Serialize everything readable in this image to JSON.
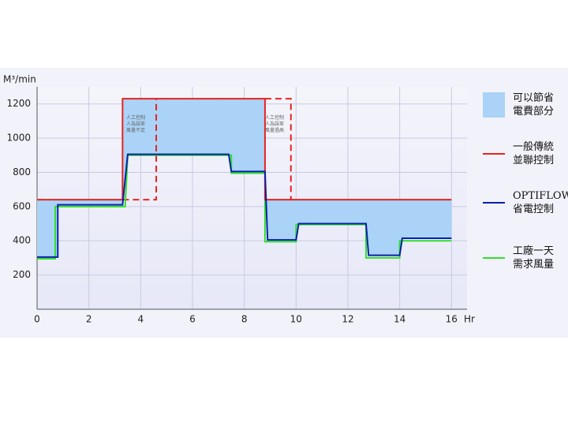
{
  "chart_data": {
    "type": "line",
    "y_label": "M³/min",
    "x_label": "Hr",
    "xlim": [
      0,
      16.6
    ],
    "ylim": [
      0,
      1300
    ],
    "xticks": [
      0,
      2,
      4,
      6,
      8,
      10,
      12,
      14,
      16
    ],
    "yticks": [
      200,
      400,
      600,
      800,
      1000,
      1200
    ],
    "grid": true,
    "shade": {
      "name": "可以節省\n電費部分",
      "color": "#aad3f7"
    },
    "series": [
      {
        "name": "一般傳統\n並聯控制",
        "color": "#e8231e",
        "x": [
          0,
          3.3,
          3.3,
          8.8,
          8.8,
          16
        ],
        "values": [
          640,
          640,
          1230,
          1230,
          640,
          640
        ]
      },
      {
        "name": "OPTIFLOW\n省電控制",
        "color": "#0a1fa8",
        "x": [
          0,
          0.8,
          0.8,
          3.3,
          3.5,
          7.4,
          7.5,
          8.8,
          8.9,
          10.0,
          10.1,
          12.7,
          12.8,
          14.0,
          14.1,
          16
        ],
        "values": [
          305,
          305,
          610,
          610,
          905,
          905,
          805,
          805,
          405,
          405,
          500,
          500,
          315,
          315,
          415,
          415
        ]
      },
      {
        "name": "工廠一天\n需求風量",
        "color": "#2ee02a",
        "x": [
          0,
          0.7,
          0.7,
          3.4,
          3.5,
          7.5,
          7.5,
          8.8,
          8.8,
          10.0,
          10.0,
          12.7,
          12.7,
          14.0,
          14.0,
          16
        ],
        "values": [
          295,
          295,
          600,
          600,
          900,
          900,
          795,
          795,
          395,
          395,
          495,
          495,
          300,
          300,
          400,
          400
        ]
      }
    ],
    "dashed": [
      {
        "color": "#e8231e",
        "x": [
          3.3,
          4.6,
          4.6
        ],
        "values": [
          640,
          640,
          1230
        ]
      },
      {
        "color": "#e8231e",
        "x": [
          8.8,
          9.8,
          9.8
        ],
        "values": [
          1230,
          1230,
          640
        ]
      }
    ],
    "annotations": [
      "人工控制\n人為誤差\n風量不足",
      "人工控制\n人為誤差\n風量過高"
    ]
  }
}
